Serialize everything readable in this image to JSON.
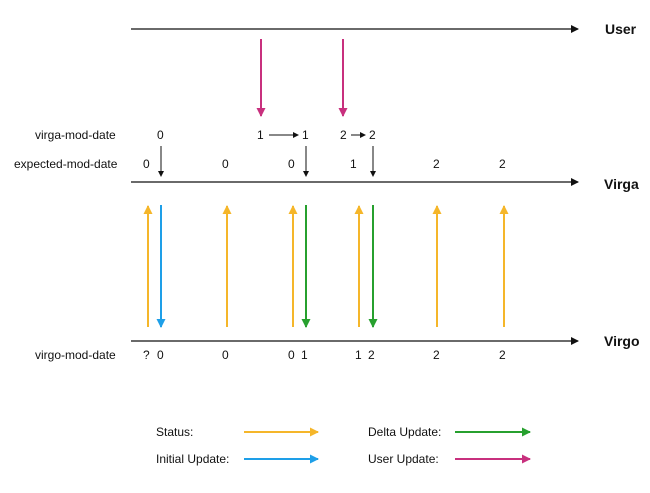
{
  "colors": {
    "status": "#F5B62A",
    "initial_update": "#1E9FE8",
    "delta_update": "#27A02E",
    "user_update": "#C8307E",
    "line": "#111111"
  },
  "timelines": {
    "user": "User",
    "virga": "Virga",
    "virgo": "Virgo"
  },
  "row_labels": {
    "virga_mod_date": "virga-mod-date",
    "expected_mod_date": "expected-mod-date",
    "virgo_mod_date": "virgo-mod-date"
  },
  "virga_mod_date": {
    "v0": "0",
    "a_from": "1",
    "a_to": "1",
    "b_from": "2",
    "b_to": "2"
  },
  "expected_mod_date": [
    "0",
    "0",
    "0",
    "1",
    "2",
    "2"
  ],
  "virgo_mod_date": {
    "q": "?",
    "first": "0",
    "v2": "0",
    "v3a": "0",
    "v3b": "1",
    "v4a": "1",
    "v4b": "2",
    "v5": "2",
    "v6": "2"
  },
  "legend": {
    "status": "Status:",
    "delta_update": "Delta Update:",
    "initial_update": "Initial Update:",
    "user_update": "User Update:"
  }
}
